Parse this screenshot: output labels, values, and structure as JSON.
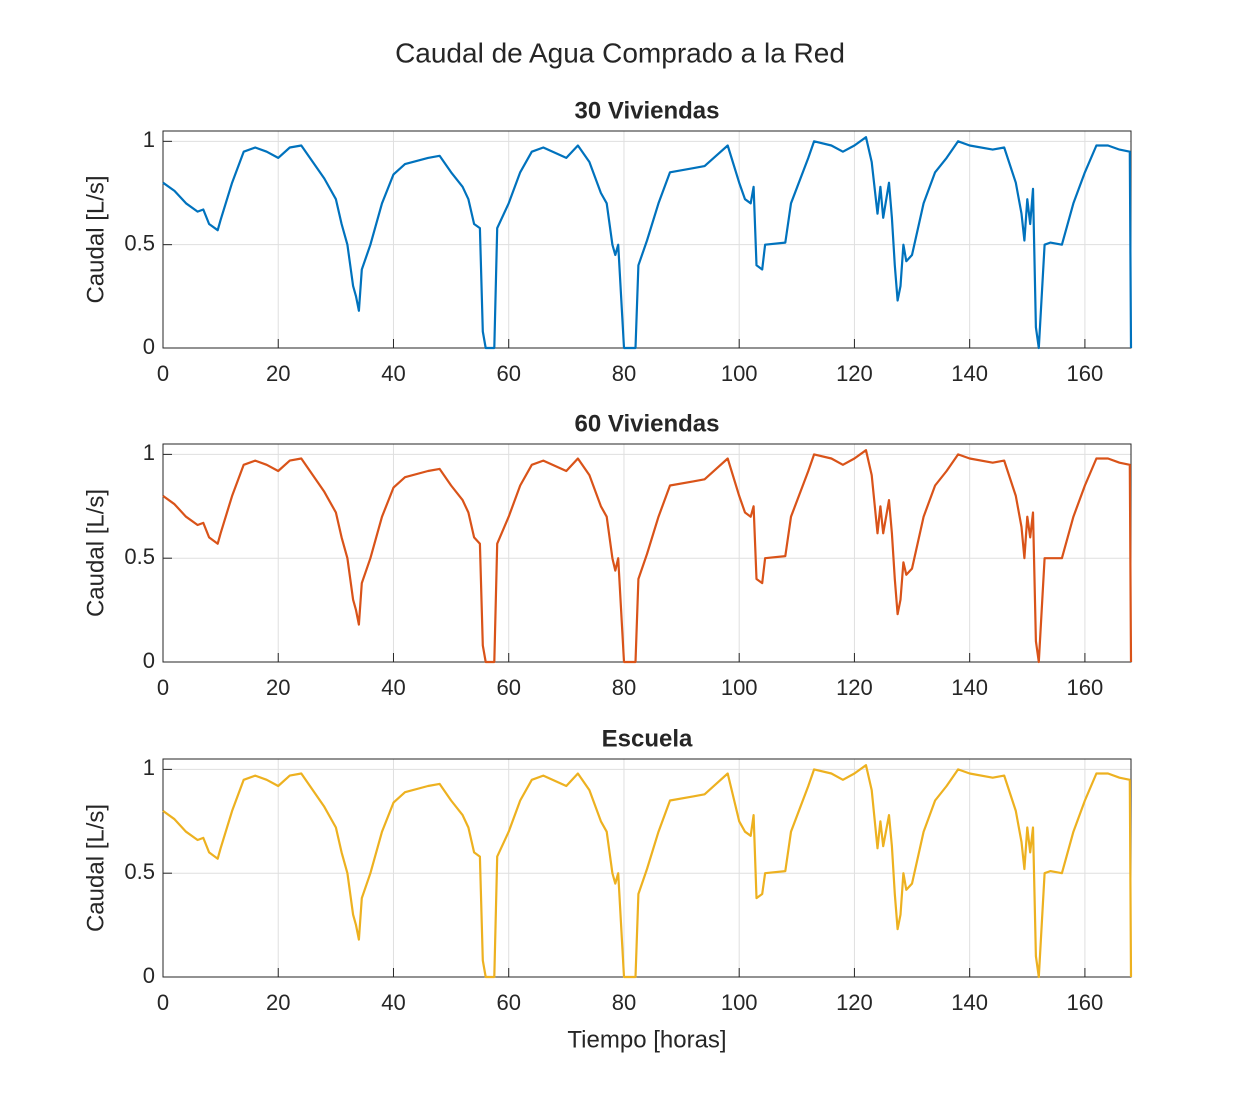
{
  "title": "Caudal de Agua Comprado a la Red",
  "chart_data": [
    {
      "type": "line",
      "title": "30 Viviendas",
      "ylabel": "Caudal [L/s]",
      "xlim": [
        0,
        168
      ],
      "xticks": [
        0,
        20,
        40,
        60,
        80,
        100,
        120,
        140,
        160
      ],
      "ylim": [
        0,
        1.05
      ],
      "yticks": [
        0,
        0.5,
        1
      ],
      "grid": true,
      "series": [
        {
          "name": "30 Viviendas",
          "color": "#0072BD",
          "x": [
            0,
            2,
            4,
            6,
            7,
            8,
            9.5,
            10,
            12,
            14,
            16,
            18,
            20,
            22,
            24,
            26,
            28,
            30,
            31,
            32,
            33,
            33.5,
            34,
            34.5,
            36,
            38,
            40,
            42,
            46,
            48,
            50,
            52,
            53,
            54,
            55,
            55.5,
            56,
            57.5,
            58,
            60,
            62,
            64,
            66,
            70,
            72,
            74,
            76,
            77,
            78,
            78.5,
            79,
            80,
            82,
            82.5,
            84,
            86,
            88,
            92,
            94,
            96,
            98,
            100,
            101,
            102,
            102.5,
            103,
            104,
            104.5,
            108,
            109,
            112,
            113,
            116,
            118,
            120,
            122,
            123,
            124,
            124.5,
            125,
            126,
            126.5,
            127,
            127.5,
            128,
            128.5,
            129,
            130,
            132,
            134,
            136,
            138,
            140,
            144,
            146,
            148,
            149,
            149.5,
            150,
            150.5,
            151,
            151.5,
            152,
            153,
            154,
            156,
            158,
            160,
            162,
            164,
            166,
            167.8,
            168
          ],
          "values": [
            0.8,
            0.76,
            0.7,
            0.66,
            0.67,
            0.6,
            0.57,
            0.62,
            0.8,
            0.95,
            0.97,
            0.95,
            0.92,
            0.97,
            0.98,
            0.9,
            0.82,
            0.72,
            0.6,
            0.5,
            0.3,
            0.25,
            0.18,
            0.38,
            0.5,
            0.7,
            0.84,
            0.89,
            0.92,
            0.93,
            0.85,
            0.78,
            0.72,
            0.6,
            0.58,
            0.08,
            0,
            0,
            0.58,
            0.7,
            0.85,
            0.95,
            0.97,
            0.92,
            0.98,
            0.9,
            0.75,
            0.7,
            0.5,
            0.45,
            0.5,
            0,
            0,
            0.4,
            0.52,
            0.7,
            0.85,
            0.87,
            0.88,
            0.93,
            0.98,
            0.8,
            0.72,
            0.7,
            0.78,
            0.4,
            0.38,
            0.5,
            0.51,
            0.7,
            0.92,
            1,
            0.98,
            0.95,
            0.98,
            1.02,
            0.9,
            0.65,
            0.78,
            0.63,
            0.8,
            0.63,
            0.4,
            0.23,
            0.3,
            0.5,
            0.42,
            0.45,
            0.7,
            0.85,
            0.92,
            1,
            0.98,
            0.96,
            0.97,
            0.8,
            0.65,
            0.52,
            0.72,
            0.6,
            0.77,
            0.1,
            0,
            0.5,
            0.51,
            0.5,
            0.7,
            0.85,
            0.98,
            0.98,
            0.96,
            0.95,
            0
          ]
        }
      ]
    },
    {
      "type": "line",
      "title": "60 Viviendas",
      "ylabel": "Caudal [L/s]",
      "xlim": [
        0,
        168
      ],
      "xticks": [
        0,
        20,
        40,
        60,
        80,
        100,
        120,
        140,
        160
      ],
      "ylim": [
        0,
        1.05
      ],
      "yticks": [
        0,
        0.5,
        1
      ],
      "grid": true,
      "series": [
        {
          "name": "60 Viviendas",
          "color": "#D95319",
          "x": [
            0,
            2,
            4,
            6,
            7,
            8,
            9.5,
            10,
            12,
            14,
            16,
            18,
            20,
            22,
            24,
            26,
            28,
            30,
            31,
            32,
            33,
            33.5,
            34,
            34.5,
            36,
            38,
            40,
            42,
            46,
            48,
            50,
            52,
            53,
            54,
            55,
            55.5,
            56,
            57.5,
            58,
            60,
            62,
            64,
            66,
            70,
            72,
            74,
            76,
            77,
            78,
            78.5,
            79,
            80,
            82,
            82.5,
            84,
            86,
            88,
            92,
            94,
            96,
            98,
            100,
            101,
            102,
            102.5,
            103,
            104,
            104.5,
            108,
            109,
            112,
            113,
            116,
            118,
            120,
            122,
            123,
            124,
            124.5,
            125,
            126,
            126.5,
            127,
            127.5,
            128,
            128.5,
            129,
            130,
            132,
            134,
            136,
            138,
            140,
            144,
            146,
            148,
            149,
            149.5,
            150,
            150.5,
            151,
            151.5,
            152,
            153,
            154,
            156,
            158,
            160,
            162,
            164,
            166,
            167.8,
            168
          ],
          "values": [
            0.8,
            0.76,
            0.7,
            0.66,
            0.67,
            0.6,
            0.57,
            0.62,
            0.8,
            0.95,
            0.97,
            0.95,
            0.92,
            0.97,
            0.98,
            0.9,
            0.82,
            0.72,
            0.6,
            0.5,
            0.3,
            0.25,
            0.18,
            0.38,
            0.5,
            0.7,
            0.84,
            0.89,
            0.92,
            0.93,
            0.85,
            0.78,
            0.72,
            0.6,
            0.57,
            0.08,
            0,
            0,
            0.57,
            0.7,
            0.85,
            0.95,
            0.97,
            0.92,
            0.98,
            0.9,
            0.75,
            0.7,
            0.5,
            0.44,
            0.5,
            0,
            0,
            0.4,
            0.52,
            0.7,
            0.85,
            0.87,
            0.88,
            0.93,
            0.98,
            0.8,
            0.72,
            0.7,
            0.75,
            0.4,
            0.38,
            0.5,
            0.51,
            0.7,
            0.92,
            1,
            0.98,
            0.95,
            0.98,
            1.02,
            0.9,
            0.62,
            0.75,
            0.62,
            0.78,
            0.62,
            0.4,
            0.23,
            0.3,
            0.48,
            0.42,
            0.45,
            0.7,
            0.85,
            0.92,
            1,
            0.98,
            0.96,
            0.97,
            0.8,
            0.65,
            0.5,
            0.7,
            0.6,
            0.72,
            0.1,
            0,
            0.5,
            0.5,
            0.5,
            0.7,
            0.85,
            0.98,
            0.98,
            0.96,
            0.95,
            0
          ]
        }
      ]
    },
    {
      "type": "line",
      "title": "Escuela",
      "ylabel": "Caudal [L/s]",
      "xlabel": "Tiempo [horas]",
      "xlim": [
        0,
        168
      ],
      "xticks": [
        0,
        20,
        40,
        60,
        80,
        100,
        120,
        140,
        160
      ],
      "ylim": [
        0,
        1.05
      ],
      "yticks": [
        0,
        0.5,
        1
      ],
      "grid": true,
      "series": [
        {
          "name": "Escuela",
          "color": "#EDB120",
          "x": [
            0,
            2,
            4,
            6,
            7,
            8,
            9.5,
            10,
            12,
            14,
            16,
            18,
            20,
            22,
            24,
            26,
            28,
            30,
            31,
            32,
            33,
            33.5,
            34,
            34.5,
            36,
            38,
            40,
            42,
            46,
            48,
            50,
            52,
            53,
            54,
            55,
            55.5,
            56,
            57.5,
            58,
            60,
            62,
            64,
            66,
            70,
            72,
            74,
            76,
            77,
            78,
            78.5,
            79,
            80,
            82,
            82.5,
            84,
            86,
            88,
            92,
            94,
            96,
            98,
            100,
            101,
            102,
            102.5,
            103,
            104,
            104.5,
            108,
            109,
            112,
            113,
            116,
            118,
            120,
            122,
            123,
            124,
            124.5,
            125,
            126,
            126.5,
            127,
            127.5,
            128,
            128.5,
            129,
            130,
            132,
            134,
            136,
            138,
            140,
            144,
            146,
            148,
            149,
            149.5,
            150,
            150.5,
            151,
            151.5,
            152,
            153,
            154,
            156,
            158,
            160,
            162,
            164,
            166,
            167.8,
            168
          ],
          "values": [
            0.8,
            0.76,
            0.7,
            0.66,
            0.67,
            0.6,
            0.57,
            0.62,
            0.8,
            0.95,
            0.97,
            0.95,
            0.92,
            0.97,
            0.98,
            0.9,
            0.82,
            0.72,
            0.6,
            0.5,
            0.3,
            0.25,
            0.18,
            0.38,
            0.5,
            0.7,
            0.84,
            0.89,
            0.92,
            0.93,
            0.85,
            0.78,
            0.72,
            0.6,
            0.58,
            0.08,
            0,
            0,
            0.58,
            0.7,
            0.85,
            0.95,
            0.97,
            0.92,
            0.98,
            0.9,
            0.75,
            0.7,
            0.5,
            0.45,
            0.5,
            0,
            0,
            0.4,
            0.52,
            0.7,
            0.85,
            0.87,
            0.88,
            0.93,
            0.98,
            0.75,
            0.7,
            0.68,
            0.78,
            0.38,
            0.4,
            0.5,
            0.51,
            0.7,
            0.92,
            1,
            0.98,
            0.95,
            0.98,
            1.02,
            0.9,
            0.62,
            0.75,
            0.63,
            0.78,
            0.63,
            0.4,
            0.23,
            0.3,
            0.5,
            0.42,
            0.45,
            0.7,
            0.85,
            0.92,
            1,
            0.98,
            0.96,
            0.97,
            0.8,
            0.65,
            0.52,
            0.72,
            0.6,
            0.72,
            0.1,
            0,
            0.5,
            0.51,
            0.5,
            0.7,
            0.85,
            0.98,
            0.98,
            0.96,
            0.95,
            0
          ]
        }
      ]
    }
  ]
}
